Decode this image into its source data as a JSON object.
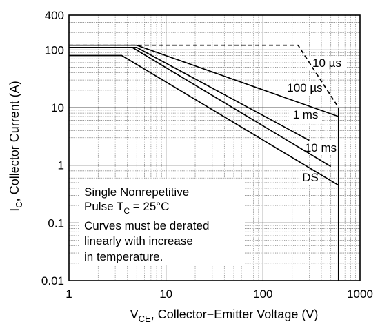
{
  "chart_data": {
    "type": "line",
    "x_scale": "log",
    "y_scale": "log",
    "xlim": [
      1,
      1000
    ],
    "ylim": [
      0.01,
      400
    ],
    "xticks": [
      1,
      10,
      100,
      1000
    ],
    "xtick_labels": [
      "1",
      "10",
      "100",
      "1000"
    ],
    "yticks": [
      0.01,
      0.1,
      1,
      10,
      100,
      400
    ],
    "ytick_labels": [
      "0.01",
      "0.1",
      "1",
      "10",
      "100",
      "400"
    ],
    "xlabel": {
      "main": "V",
      "sub": "CE",
      "rest": ", Collector−Emitter Voltage (V)"
    },
    "ylabel": {
      "main": "I",
      "sub": "C",
      "rest": ", Collector Current (A)"
    },
    "grid": true,
    "series": [
      {
        "name": "10 µs",
        "dashed": true,
        "x": [
          1,
          35,
          230,
          600
        ],
        "y": [
          120,
          120,
          120,
          10
        ]
      },
      {
        "name": "100 µs",
        "dashed": false,
        "x": [
          1,
          5,
          600
        ],
        "y": [
          120,
          120,
          7
        ]
      },
      {
        "name": "1 ms",
        "dashed": false,
        "x": [
          1,
          5,
          300
        ],
        "y": [
          110,
          110,
          2.7
        ]
      },
      {
        "name": "10 ms",
        "dashed": false,
        "x": [
          1,
          4.5,
          500
        ],
        "y": [
          110,
          110,
          0.95
        ]
      },
      {
        "name": "DS",
        "dashed": false,
        "x": [
          1,
          3.5,
          600
        ],
        "y": [
          80,
          80,
          0.45
        ]
      },
      {
        "name": "",
        "dashed": false,
        "x": [
          600,
          600
        ],
        "y": [
          0.01,
          10
        ]
      }
    ],
    "annotation": {
      "line1": "Single Nonrepetitive",
      "line2_pre": "Pulse T",
      "line2_sub": "C",
      "line2_post": " = 25°C",
      "line3": "Curves must be derated",
      "line4": "linearly with increase",
      "line5": "in temperature."
    }
  }
}
